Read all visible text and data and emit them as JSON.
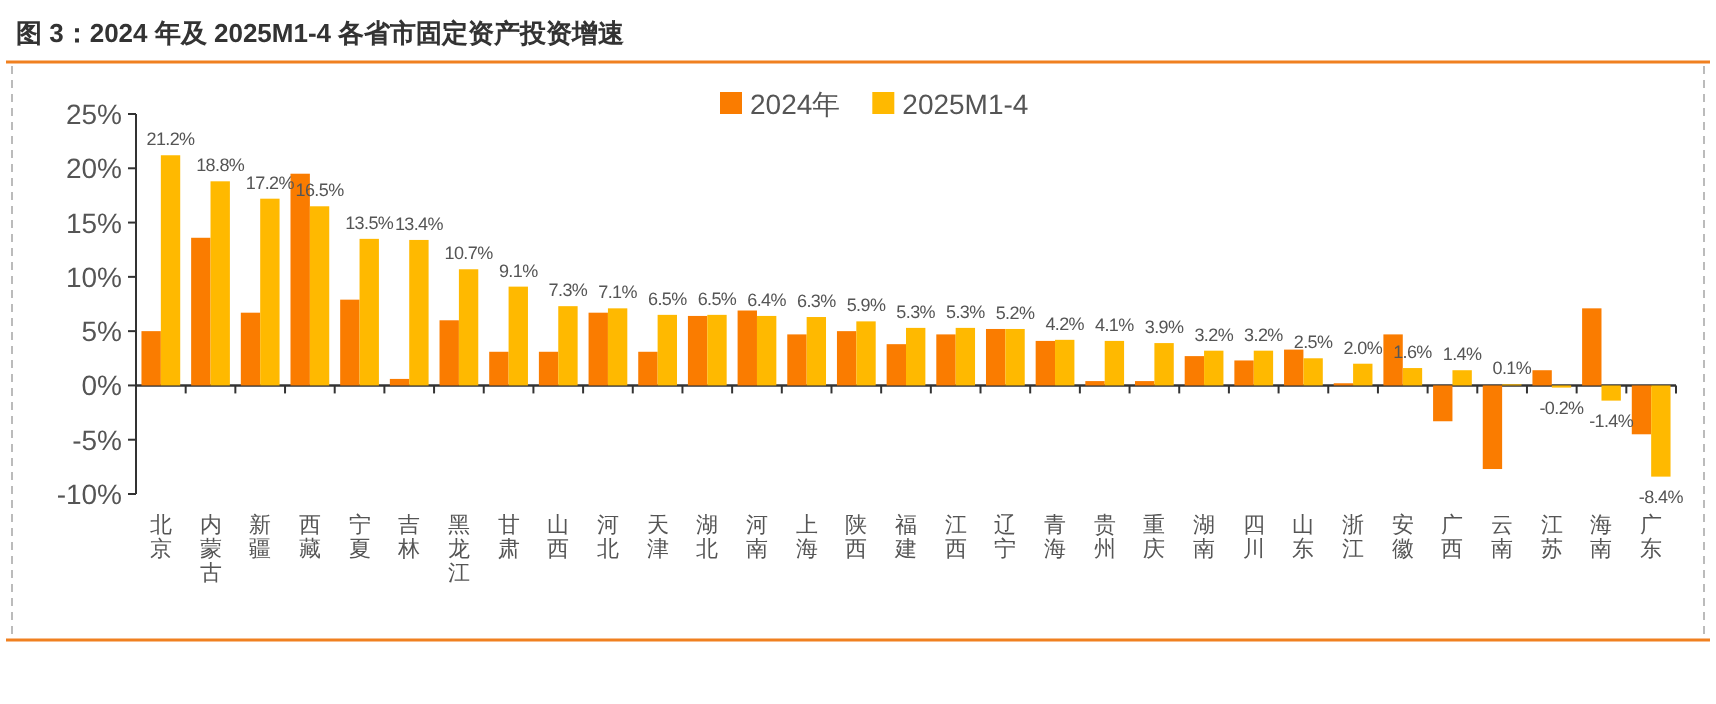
{
  "chart_data": {
    "type": "bar",
    "title": "图 3：2024 年及 2025M1-4 各省市固定资产投资增速",
    "categories": [
      "北京",
      "内蒙古",
      "新疆",
      "西藏",
      "宁夏",
      "吉林",
      "黑龙江",
      "甘肃",
      "山西",
      "河北",
      "天津",
      "湖北",
      "河南",
      "上海",
      "陕西",
      "福建",
      "江西",
      "辽宁",
      "青海",
      "贵州",
      "重庆",
      "湖南",
      "四川",
      "山东",
      "浙江",
      "安徽",
      "广西",
      "云南",
      "江苏",
      "海南",
      "广东"
    ],
    "series": [
      {
        "name": "2024年",
        "color": "#fa7c00",
        "values": [
          5.0,
          13.6,
          6.7,
          19.5,
          7.9,
          0.6,
          6.0,
          3.1,
          3.1,
          6.7,
          3.1,
          6.4,
          6.9,
          4.7,
          5.0,
          3.8,
          4.7,
          5.2,
          4.1,
          0.4,
          0.4,
          2.7,
          2.3,
          3.3,
          0.2,
          4.7,
          -3.3,
          -7.7,
          1.4,
          7.1,
          -4.5
        ]
      },
      {
        "name": "2025M1-4",
        "color": "#ffb900",
        "values": [
          21.2,
          18.8,
          17.2,
          16.5,
          13.5,
          13.4,
          10.7,
          9.1,
          7.3,
          7.1,
          6.5,
          6.5,
          6.4,
          6.3,
          5.9,
          5.3,
          5.3,
          5.2,
          4.2,
          4.1,
          3.9,
          3.2,
          3.2,
          2.5,
          2.0,
          1.6,
          1.4,
          0.1,
          -0.2,
          -1.4,
          -8.4
        ],
        "value_labels": [
          "21.2%",
          "18.8%",
          "17.2%",
          "16.5%",
          "13.5%",
          "13.4%",
          "10.7%",
          "9.1%",
          "7.3%",
          "7.1%",
          "6.5%",
          "6.5%",
          "6.4%",
          "6.3%",
          "5.9%",
          "5.3%",
          "5.3%",
          "5.2%",
          "4.2%",
          "4.1%",
          "3.9%",
          "3.2%",
          "3.2%",
          "2.5%",
          "2.0%",
          "1.6%",
          "1.4%",
          "0.1%",
          "-0.2%",
          "-1.4%",
          "-8.4%"
        ]
      }
    ],
    "ylim": [
      -10,
      25
    ],
    "yticks": [
      {
        "value": -10,
        "label": "-10%"
      },
      {
        "value": -5,
        "label": "-5%"
      },
      {
        "value": 0,
        "label": "0%"
      },
      {
        "value": 5,
        "label": "5%"
      },
      {
        "value": 10,
        "label": "10%"
      },
      {
        "value": 15,
        "label": "15%"
      },
      {
        "value": 20,
        "label": "20%"
      },
      {
        "value": 25,
        "label": "25%"
      }
    ],
    "legend": "top right"
  }
}
